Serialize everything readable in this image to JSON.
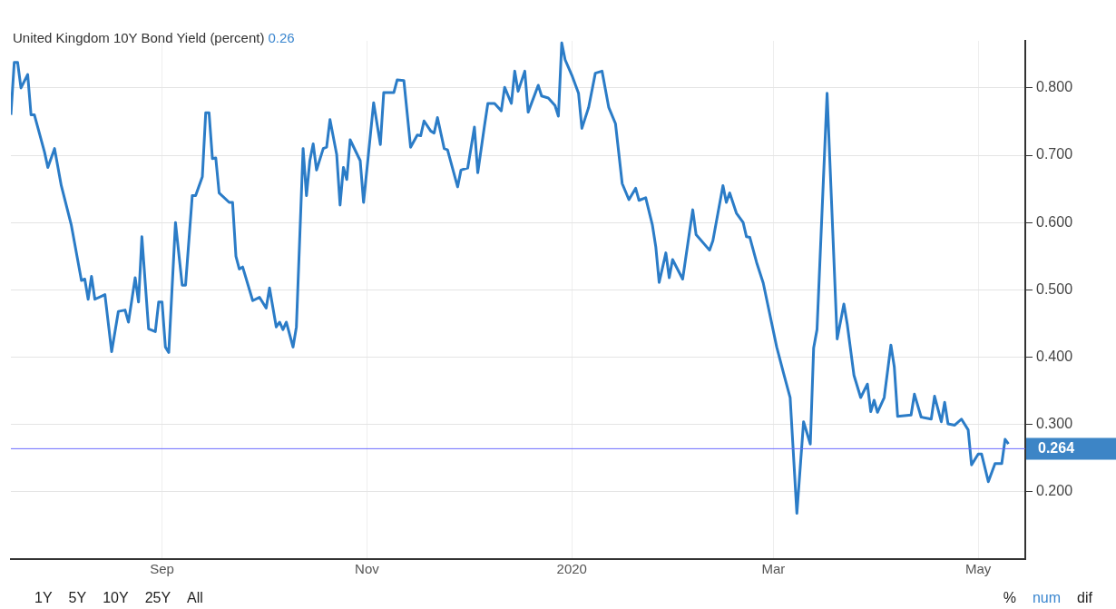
{
  "chart_data": {
    "type": "line",
    "title": "United Kingdom 10Y Bond Yield (percent)",
    "subtitle": "0.26",
    "x": [
      "2019-07-18",
      "2019-07-19",
      "2019-07-20",
      "2019-07-21",
      "2019-07-23",
      "2019-07-24",
      "2019-07-25",
      "2019-07-28",
      "2019-07-29",
      "2019-07-31",
      "2019-08-02",
      "2019-08-05",
      "2019-08-08",
      "2019-08-09",
      "2019-08-10",
      "2019-08-11",
      "2019-08-12",
      "2019-08-15",
      "2019-08-17",
      "2019-08-19",
      "2019-08-21",
      "2019-08-22",
      "2019-08-24",
      "2019-08-25",
      "2019-08-26",
      "2019-08-28",
      "2019-08-30",
      "2019-08-31",
      "2019-09-01",
      "2019-09-02",
      "2019-09-03",
      "2019-09-05",
      "2019-09-07",
      "2019-09-08",
      "2019-09-10",
      "2019-09-11",
      "2019-09-13",
      "2019-09-14",
      "2019-09-15",
      "2019-09-16",
      "2019-09-17",
      "2019-09-18",
      "2019-09-21",
      "2019-09-22",
      "2019-09-23",
      "2019-09-24",
      "2019-09-25",
      "2019-09-28",
      "2019-09-30",
      "2019-10-02",
      "2019-10-03",
      "2019-10-05",
      "2019-10-06",
      "2019-10-07",
      "2019-10-08",
      "2019-10-10",
      "2019-10-11",
      "2019-10-13",
      "2019-10-14",
      "2019-10-15",
      "2019-10-16",
      "2019-10-17",
      "2019-10-19",
      "2019-10-20",
      "2019-10-21",
      "2019-10-23",
      "2019-10-24",
      "2019-10-25",
      "2019-10-26",
      "2019-10-27",
      "2019-10-30",
      "2019-10-31",
      "2019-11-03",
      "2019-11-05",
      "2019-11-06",
      "2019-11-09",
      "2019-11-10",
      "2019-11-12",
      "2019-11-14",
      "2019-11-16",
      "2019-11-17",
      "2019-11-18",
      "2019-11-20",
      "2019-11-21",
      "2019-11-22",
      "2019-11-24",
      "2019-11-25",
      "2019-11-28",
      "2019-11-29",
      "2019-12-01",
      "2019-12-03",
      "2019-12-04",
      "2019-12-06",
      "2019-12-07",
      "2019-12-09",
      "2019-12-11",
      "2019-12-12",
      "2019-12-14",
      "2019-12-15",
      "2019-12-16",
      "2019-12-18",
      "2019-12-19",
      "2019-12-22",
      "2019-12-23",
      "2019-12-25",
      "2019-12-27",
      "2019-12-28",
      "2019-12-29",
      "2019-12-30",
      "2020-01-01",
      "2020-01-03",
      "2020-01-04",
      "2020-01-06",
      "2020-01-08",
      "2020-01-10",
      "2020-01-12",
      "2020-01-14",
      "2020-01-16",
      "2020-01-18",
      "2020-01-20",
      "2020-01-21",
      "2020-01-23",
      "2020-01-25",
      "2020-01-26",
      "2020-01-27",
      "2020-01-29",
      "2020-01-30",
      "2020-01-31",
      "2020-02-03",
      "2020-02-06",
      "2020-02-07",
      "2020-02-11",
      "2020-02-12",
      "2020-02-15",
      "2020-02-16",
      "2020-02-17",
      "2020-02-19",
      "2020-02-21",
      "2020-02-22",
      "2020-02-23",
      "2020-02-25",
      "2020-02-27",
      "2020-03-02",
      "2020-03-04",
      "2020-03-06",
      "2020-03-08",
      "2020-03-10",
      "2020-03-12",
      "2020-03-13",
      "2020-03-14",
      "2020-03-17",
      "2020-03-20",
      "2020-03-22",
      "2020-03-23",
      "2020-03-25",
      "2020-03-27",
      "2020-03-29",
      "2020-03-30",
      "2020-03-31",
      "2020-04-01",
      "2020-04-03",
      "2020-04-05",
      "2020-04-06",
      "2020-04-07",
      "2020-04-11",
      "2020-04-12",
      "2020-04-14",
      "2020-04-17",
      "2020-04-18",
      "2020-04-20",
      "2020-04-21",
      "2020-04-22",
      "2020-04-24",
      "2020-04-26",
      "2020-04-28",
      "2020-04-29",
      "2020-05-01",
      "2020-05-02",
      "2020-05-04",
      "2020-05-06",
      "2020-05-08",
      "2020-05-09",
      "2020-05-10"
    ],
    "series": [
      {
        "color": "#2b7cc7",
        "values": [
          0.76,
          0.838,
          0.838,
          0.8,
          0.82,
          0.76,
          0.76,
          0.705,
          0.682,
          0.71,
          0.655,
          0.596,
          0.514,
          0.516,
          0.486,
          0.52,
          0.486,
          0.493,
          0.408,
          0.468,
          0.47,
          0.452,
          0.518,
          0.482,
          0.579,
          0.442,
          0.438,
          0.482,
          0.482,
          0.415,
          0.407,
          0.6,
          0.507,
          0.507,
          0.64,
          0.64,
          0.668,
          0.763,
          0.763,
          0.695,
          0.696,
          0.644,
          0.63,
          0.63,
          0.55,
          0.531,
          0.534,
          0.484,
          0.489,
          0.473,
          0.503,
          0.445,
          0.452,
          0.441,
          0.452,
          0.415,
          0.445,
          0.71,
          0.64,
          0.692,
          0.717,
          0.678,
          0.71,
          0.712,
          0.753,
          0.701,
          0.626,
          0.682,
          0.664,
          0.723,
          0.692,
          0.63,
          0.778,
          0.716,
          0.793,
          0.793,
          0.812,
          0.811,
          0.712,
          0.73,
          0.729,
          0.751,
          0.736,
          0.733,
          0.756,
          0.71,
          0.708,
          0.653,
          0.678,
          0.681,
          0.742,
          0.674,
          0.744,
          0.777,
          0.777,
          0.766,
          0.801,
          0.777,
          0.825,
          0.795,
          0.825,
          0.764,
          0.804,
          0.788,
          0.785,
          0.774,
          0.758,
          0.867,
          0.842,
          0.819,
          0.792,
          0.74,
          0.771,
          0.822,
          0.825,
          0.771,
          0.747,
          0.658,
          0.634,
          0.651,
          0.633,
          0.637,
          0.596,
          0.564,
          0.511,
          0.555,
          0.518,
          0.545,
          0.516,
          0.619,
          0.582,
          0.559,
          0.573,
          0.655,
          0.63,
          0.644,
          0.614,
          0.6,
          0.579,
          0.578,
          0.541,
          0.51,
          0.415,
          0.377,
          0.34,
          0.168,
          0.304,
          0.271,
          0.414,
          0.441,
          0.792,
          0.427,
          0.479,
          0.449,
          0.373,
          0.34,
          0.36,
          0.319,
          0.336,
          0.318,
          0.34,
          0.418,
          0.386,
          0.312,
          0.314,
          0.345,
          0.311,
          0.308,
          0.342,
          0.304,
          0.333,
          0.301,
          0.299,
          0.308,
          0.292,
          0.24,
          0.256,
          0.256,
          0.215,
          0.242,
          0.242,
          0.278,
          0.271
        ]
      }
    ],
    "xlim": [
      "2019-07-18",
      "2020-05-15"
    ],
    "xticks": [
      {
        "value": "2019-09-01",
        "label": "Sep"
      },
      {
        "value": "2019-11-01",
        "label": "Nov"
      },
      {
        "value": "2020-01-01",
        "label": "2020"
      },
      {
        "value": "2020-03-01",
        "label": "Mar"
      },
      {
        "value": "2020-05-01",
        "label": "May"
      }
    ],
    "ylim": [
      0.1,
      0.87
    ],
    "yticks": [
      {
        "value": 0.2,
        "label": "0.200"
      },
      {
        "value": 0.3,
        "label": "0.300"
      },
      {
        "value": 0.4,
        "label": "0.400"
      },
      {
        "value": 0.5,
        "label": "0.500"
      },
      {
        "value": 0.6,
        "label": "0.600"
      },
      {
        "value": 0.7,
        "label": "0.700"
      },
      {
        "value": 0.8,
        "label": "0.800"
      }
    ],
    "ref_lines": [
      {
        "axis": "y",
        "value": 0.264,
        "label": "0.264",
        "color": "#6b6bff"
      }
    ],
    "grid": true,
    "legend": false,
    "marker": "none",
    "line_style": "solid",
    "annotations": [
      "1Y",
      "5Y",
      "10Y",
      "25Y",
      "All",
      "%",
      "num",
      "dif"
    ]
  }
}
